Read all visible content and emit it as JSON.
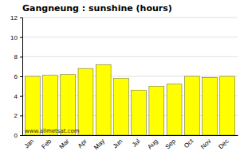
{
  "chart_data": {
    "type": "bar",
    "title": "Gangneung : sunshine (hours)",
    "categories": [
      "Jan",
      "Feb",
      "Mar",
      "Apr",
      "May",
      "Jun",
      "Jul",
      "Aug",
      "Sep",
      "Oct",
      "Nov",
      "Dec"
    ],
    "values": [
      6.0,
      6.1,
      6.2,
      6.8,
      7.2,
      5.8,
      4.6,
      5.0,
      5.2,
      6.0,
      5.9,
      6.0
    ],
    "color": "#ffff00",
    "ylim": [
      0,
      12
    ],
    "yticks": [
      0,
      2,
      4,
      6,
      8,
      10,
      12
    ],
    "grid": true,
    "annotation": "www.allmetsat.com"
  }
}
